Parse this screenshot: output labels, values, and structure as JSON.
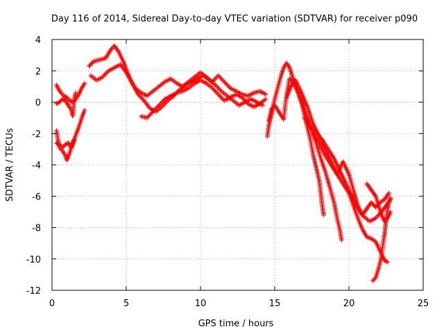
{
  "chart_data": {
    "type": "scatter",
    "title": "Day 116 of 2014, Sidereal Day-to-day VTEC variation (SDTVAR) for receiver p090",
    "xlabel": "GPS time / hours",
    "ylabel": "SDTVAR / TECUs",
    "xlim": [
      0,
      25
    ],
    "ylim": [
      -12,
      4
    ],
    "x_ticks": [
      0,
      5,
      10,
      15,
      20,
      25
    ],
    "y_ticks": [
      -12,
      -10,
      -8,
      -6,
      -4,
      -2,
      0,
      2,
      4
    ],
    "grid": true,
    "legend": "none",
    "marker": "plus",
    "color": "#ff0000",
    "series": [
      {
        "points": [
          [
            0.3,
            1.1
          ],
          [
            0.4,
            0.9
          ],
          [
            0.6,
            0.6
          ],
          [
            0.8,
            0.4
          ],
          [
            1.0,
            0.3
          ],
          [
            1.2,
            0.1
          ],
          [
            1.4,
            0.0
          ],
          [
            1.6,
            0.2
          ],
          [
            1.8,
            0.5
          ],
          [
            2.0,
            0.9
          ],
          [
            2.2,
            1.2
          ]
        ]
      },
      {
        "points": [
          [
            0.3,
            -0.1
          ],
          [
            0.5,
            0.0
          ],
          [
            0.7,
            0.2
          ],
          [
            0.9,
            0.1
          ],
          [
            1.1,
            -0.2
          ],
          [
            1.3,
            -0.5
          ],
          [
            1.4,
            -0.9
          ],
          [
            1.5,
            0.2
          ],
          [
            1.6,
            0.6
          ]
        ]
      },
      {
        "points": [
          [
            0.3,
            -1.8
          ],
          [
            0.4,
            -2.4
          ],
          [
            0.5,
            -2.9
          ],
          [
            0.7,
            -3.1
          ],
          [
            0.9,
            -3.4
          ],
          [
            1.0,
            -3.7
          ],
          [
            1.2,
            -3.2
          ],
          [
            1.4,
            -2.6
          ],
          [
            1.6,
            -2.1
          ],
          [
            1.8,
            -1.6
          ],
          [
            2.0,
            -1.0
          ],
          [
            2.2,
            -0.5
          ]
        ]
      },
      {
        "points": [
          [
            0.3,
            -2.6
          ],
          [
            0.5,
            -2.7
          ],
          [
            0.7,
            -2.9
          ],
          [
            0.9,
            -2.7
          ],
          [
            1.1,
            -2.6
          ],
          [
            1.3,
            -2.9
          ],
          [
            1.5,
            -2.4
          ]
        ]
      },
      {
        "points": [
          [
            2.5,
            2.3
          ],
          [
            2.8,
            2.6
          ],
          [
            3.2,
            2.7
          ],
          [
            3.6,
            2.8
          ],
          [
            4.0,
            3.4
          ],
          [
            4.2,
            3.6
          ],
          [
            4.5,
            3.2
          ],
          [
            4.8,
            2.6
          ],
          [
            5.0,
            2.1
          ],
          [
            5.2,
            1.6
          ],
          [
            5.6,
            0.9
          ],
          [
            6.0,
            0.6
          ],
          [
            6.4,
            0.4
          ],
          [
            6.8,
            0.7
          ],
          [
            7.2,
            1.0
          ],
          [
            7.6,
            1.3
          ],
          [
            8.0,
            1.5
          ],
          [
            8.4,
            1.2
          ],
          [
            8.8,
            1.0
          ],
          [
            9.2,
            1.3
          ],
          [
            9.6,
            1.6
          ],
          [
            10.0,
            1.9
          ],
          [
            10.4,
            1.6
          ],
          [
            10.8,
            1.3
          ],
          [
            11.2,
            1.7
          ],
          [
            11.6,
            1.3
          ],
          [
            12.0,
            0.9
          ],
          [
            12.4,
            0.7
          ],
          [
            12.8,
            0.5
          ],
          [
            13.2,
            0.4
          ],
          [
            13.6,
            0.6
          ],
          [
            14.0,
            0.7
          ],
          [
            14.4,
            0.5
          ]
        ]
      },
      {
        "points": [
          [
            2.6,
            1.7
          ],
          [
            3.0,
            1.4
          ],
          [
            3.4,
            1.6
          ],
          [
            3.8,
            2.0
          ],
          [
            4.2,
            2.2
          ],
          [
            4.6,
            2.4
          ],
          [
            5.0,
            1.9
          ],
          [
            5.4,
            1.2
          ],
          [
            5.8,
            0.5
          ],
          [
            6.2,
            0.1
          ],
          [
            6.6,
            -0.4
          ],
          [
            7.0,
            -0.6
          ],
          [
            7.4,
            -0.3
          ],
          [
            7.8,
            0.1
          ],
          [
            8.2,
            0.4
          ],
          [
            8.6,
            0.8
          ],
          [
            9.0,
            1.1
          ],
          [
            9.4,
            1.3
          ],
          [
            9.8,
            1.5
          ],
          [
            10.2,
            1.7
          ],
          [
            10.6,
            1.4
          ],
          [
            11.0,
            1.1
          ],
          [
            11.4,
            0.7
          ],
          [
            11.8,
            0.4
          ],
          [
            12.2,
            0.1
          ],
          [
            12.6,
            -0.2
          ],
          [
            13.0,
            0.0
          ],
          [
            13.4,
            0.2
          ],
          [
            13.8,
            0.0
          ],
          [
            14.2,
            -0.2
          ]
        ]
      },
      {
        "points": [
          [
            6.0,
            -0.9
          ],
          [
            6.4,
            -1.0
          ],
          [
            6.8,
            -0.6
          ],
          [
            7.2,
            -0.2
          ],
          [
            7.6,
            0.2
          ],
          [
            8.0,
            0.4
          ],
          [
            8.4,
            0.6
          ],
          [
            8.8,
            0.7
          ],
          [
            9.2,
            0.9
          ],
          [
            9.6,
            1.2
          ],
          [
            10.0,
            1.4
          ],
          [
            10.4,
            1.2
          ],
          [
            10.8,
            0.9
          ],
          [
            11.2,
            0.5
          ],
          [
            11.6,
            0.1
          ],
          [
            12.0,
            0.3
          ],
          [
            12.4,
            0.5
          ],
          [
            12.8,
            0.3
          ],
          [
            13.2,
            -0.1
          ],
          [
            13.6,
            -0.3
          ],
          [
            14.0,
            -0.1
          ],
          [
            14.4,
            0.2
          ]
        ]
      },
      {
        "points": [
          [
            14.5,
            -2.2
          ],
          [
            14.6,
            -1.5
          ],
          [
            14.8,
            -0.7
          ],
          [
            15.0,
            0.2
          ],
          [
            15.2,
            0.9
          ],
          [
            15.4,
            1.6
          ],
          [
            15.6,
            2.2
          ],
          [
            15.8,
            2.5
          ],
          [
            16.0,
            2.2
          ],
          [
            16.2,
            1.6
          ],
          [
            16.5,
            0.8
          ],
          [
            16.8,
            0.0
          ],
          [
            17.0,
            -0.8
          ],
          [
            17.2,
            -1.6
          ],
          [
            17.4,
            -2.4
          ],
          [
            17.6,
            -3.4
          ],
          [
            17.8,
            -4.2
          ],
          [
            18.0,
            -5.0
          ],
          [
            18.1,
            -5.8
          ],
          [
            18.2,
            -6.6
          ],
          [
            18.3,
            -7.2
          ]
        ]
      },
      {
        "points": [
          [
            14.6,
            -1.2
          ],
          [
            14.8,
            -0.4
          ],
          [
            15.0,
            -0.2
          ],
          [
            15.2,
            -0.5
          ],
          [
            15.4,
            -0.8
          ],
          [
            15.6,
            -1.1
          ],
          [
            15.8,
            0.5
          ],
          [
            16.0,
            1.5
          ],
          [
            16.3,
            1.2
          ],
          [
            16.6,
            0.6
          ],
          [
            16.9,
            -0.2
          ],
          [
            17.2,
            -1.0
          ],
          [
            17.5,
            -1.8
          ],
          [
            17.8,
            -2.6
          ],
          [
            18.1,
            -3.6
          ],
          [
            18.4,
            -4.4
          ],
          [
            18.7,
            -5.4
          ],
          [
            19.0,
            -6.4
          ],
          [
            19.2,
            -7.4
          ],
          [
            19.4,
            -8.2
          ],
          [
            19.5,
            -8.8
          ]
        ]
      },
      {
        "points": [
          [
            15.8,
            0.3
          ],
          [
            16.1,
            1.0
          ],
          [
            16.4,
            1.4
          ],
          [
            16.8,
            0.6
          ],
          [
            17.2,
            -0.3
          ],
          [
            17.6,
            -1.4
          ],
          [
            18.0,
            -2.2
          ],
          [
            18.4,
            -3.0
          ],
          [
            18.8,
            -3.8
          ],
          [
            19.2,
            -4.6
          ],
          [
            19.6,
            -5.2
          ],
          [
            20.0,
            -5.8
          ],
          [
            20.3,
            -6.6
          ],
          [
            20.6,
            -7.4
          ],
          [
            20.9,
            -8.1
          ],
          [
            21.2,
            -8.6
          ],
          [
            21.5,
            -8.7
          ],
          [
            21.8,
            -8.9
          ],
          [
            22.0,
            -9.3
          ],
          [
            22.2,
            -9.7
          ],
          [
            22.4,
            -10.1
          ],
          [
            22.6,
            -10.2
          ]
        ]
      },
      {
        "points": [
          [
            17.0,
            -1.0
          ],
          [
            17.4,
            -1.6
          ],
          [
            17.8,
            -1.9
          ],
          [
            18.2,
            -2.4
          ],
          [
            18.6,
            -3.0
          ],
          [
            19.0,
            -3.6
          ],
          [
            19.4,
            -4.4
          ],
          [
            19.8,
            -5.2
          ],
          [
            20.2,
            -6.0
          ],
          [
            20.6,
            -6.8
          ],
          [
            21.0,
            -7.3
          ],
          [
            21.4,
            -7.6
          ],
          [
            21.8,
            -7.4
          ],
          [
            22.2,
            -7.0
          ],
          [
            22.5,
            -6.6
          ],
          [
            22.8,
            -6.2
          ]
        ]
      },
      {
        "points": [
          [
            17.6,
            -2.0
          ],
          [
            18.0,
            -2.6
          ],
          [
            18.4,
            -3.4
          ],
          [
            18.8,
            -4.0
          ],
          [
            19.2,
            -4.6
          ],
          [
            19.6,
            -3.8
          ],
          [
            20.0,
            -4.6
          ],
          [
            20.3,
            -5.6
          ],
          [
            20.6,
            -6.6
          ],
          [
            20.9,
            -7.2
          ],
          [
            21.2,
            -6.8
          ],
          [
            21.5,
            -6.4
          ],
          [
            21.8,
            -6.7
          ],
          [
            22.1,
            -6.4
          ],
          [
            22.4,
            -6.2
          ],
          [
            22.7,
            -5.8
          ]
        ]
      },
      {
        "points": [
          [
            21.2,
            -5.2
          ],
          [
            21.5,
            -5.6
          ],
          [
            21.8,
            -6.0
          ],
          [
            22.0,
            -6.6
          ],
          [
            22.2,
            -7.2
          ],
          [
            22.4,
            -7.6
          ],
          [
            22.6,
            -7.4
          ],
          [
            22.8,
            -7.0
          ]
        ]
      },
      {
        "points": [
          [
            21.6,
            -11.4
          ],
          [
            21.8,
            -11.2
          ],
          [
            22.0,
            -10.6
          ],
          [
            22.2,
            -9.8
          ],
          [
            22.3,
            -9.0
          ],
          [
            22.4,
            -8.4
          ],
          [
            22.5,
            -7.6
          ],
          [
            22.6,
            -6.8
          ],
          [
            22.7,
            -6.4
          ],
          [
            22.8,
            -6.1
          ]
        ]
      }
    ]
  }
}
